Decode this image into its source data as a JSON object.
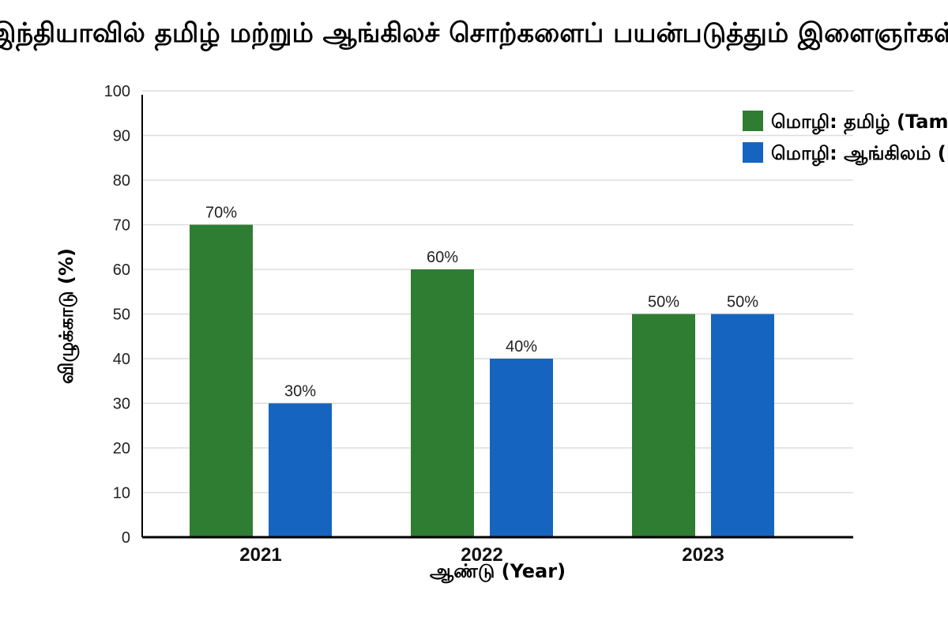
{
  "chart_data": {
    "type": "bar",
    "title": "இந்தியாவில் தமிழ் மற்றும் ஆங்கிலச் சொற்களைப் பயன்படுத்தும் இளைஞர்கள்",
    "xlabel": "ஆண்டு (Year)",
    "ylabel": "விழுக்காடு (%)",
    "categories": [
      "2021",
      "2022",
      "2023"
    ],
    "ylim": [
      0,
      100
    ],
    "yticks": [
      0,
      10,
      20,
      30,
      40,
      50,
      60,
      70,
      80,
      90,
      100
    ],
    "grid": true,
    "legend_position": "top-right",
    "series": [
      {
        "name": "மொழி: தமிழ் (Tamil)",
        "values": [
          70,
          60,
          50
        ],
        "labels": [
          "70%",
          "60%",
          "50%"
        ],
        "color": "#2e7d32"
      },
      {
        "name": "மொழி: ஆங்கிலம் (English)",
        "values": [
          30,
          40,
          50
        ],
        "labels": [
          "30%",
          "40%",
          "50%"
        ],
        "color": "#1565c0"
      }
    ]
  }
}
